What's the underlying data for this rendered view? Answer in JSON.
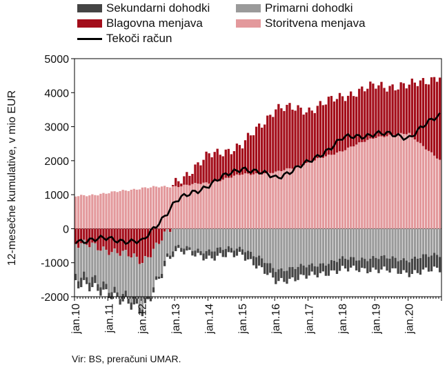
{
  "legend": {
    "items": [
      {
        "label": "Sekundarni dohodki",
        "color": "#444444",
        "kind": "box"
      },
      {
        "label": "Primarni dohodki",
        "color": "#9a9a9a",
        "kind": "box"
      },
      {
        "label": "Blagovna menjava",
        "color": "#a30d1a",
        "kind": "box"
      },
      {
        "label": "Storitvena menjava",
        "color": "#e3999c",
        "kind": "box"
      },
      {
        "label": "Tekoči račun",
        "color": "#000000",
        "kind": "line"
      }
    ]
  },
  "source": "Vir: BS, preračuni UMAR.",
  "chart_data": {
    "type": "bar",
    "stacked": true,
    "ylabel": "12-mesečne kumulative, v mio EUR",
    "ylim": [
      -2000,
      5000
    ],
    "yticks": [
      "5000",
      "4000",
      "3000",
      "2000",
      "1000",
      "0",
      "-1000",
      "-2000"
    ],
    "xticks": [
      "jan.10",
      "jan.11",
      "jan.12",
      "jan.13",
      "jan.14",
      "jan.15",
      "jan.16",
      "jan.17",
      "jan.18",
      "jan.19",
      "jan.20"
    ],
    "period": "monthly, jan.10 – dec.20",
    "series": [
      {
        "name": "Sekundarni dohodki",
        "color": "#444444",
        "knots": [
          [
            "jan.10",
            -250
          ],
          [
            "jan.11",
            -200
          ],
          [
            "jan.12",
            -150
          ],
          [
            "jan.13",
            -100
          ],
          [
            "jan.14",
            -200
          ],
          [
            "jan.15",
            -200
          ],
          [
            "jan.16",
            -350
          ],
          [
            "jan.17",
            -300
          ],
          [
            "jan.18",
            -300
          ],
          [
            "jan.19",
            -350
          ],
          [
            "jan.20",
            -400
          ],
          [
            "dec.20",
            -450
          ]
        ]
      },
      {
        "name": "Primarni dohodki",
        "color": "#9a9a9a",
        "knots": [
          [
            "jan.10",
            -900
          ],
          [
            "jan.11",
            -1100
          ],
          [
            "jan.12",
            -1350
          ],
          [
            "jan.13",
            -550
          ],
          [
            "jan.14",
            -650
          ],
          [
            "jan.15",
            -550
          ],
          [
            "jan.16",
            -1200
          ],
          [
            "jan.17",
            -1100
          ],
          [
            "jan.18",
            -900
          ],
          [
            "jan.19",
            -850
          ],
          [
            "jan.20",
            -900
          ],
          [
            "dec.20",
            -750
          ]
        ]
      },
      {
        "name": "Blagovna menjava",
        "color": "#a30d1a",
        "knots": [
          [
            "jan.10",
            -450
          ],
          [
            "jan.11",
            -600
          ],
          [
            "jan.12",
            -950
          ],
          [
            "jan.12b",
            -300
          ],
          [
            "jan.13",
            100
          ],
          [
            "jan.14",
            800
          ],
          [
            "jan.15",
            850
          ],
          [
            "jan.16",
            1900
          ],
          [
            "jan.17",
            1550
          ],
          [
            "jan.18",
            1600
          ],
          [
            "jan.19",
            1500
          ],
          [
            "jan.20",
            1400
          ],
          [
            "dec.20",
            2500
          ]
        ]
      },
      {
        "name": "Storitvena menjava",
        "color": "#e3999c",
        "knots": [
          [
            "jan.10",
            950
          ],
          [
            "jan.11",
            1050
          ],
          [
            "jan.12",
            1200
          ],
          [
            "jan.13",
            1250
          ],
          [
            "jan.14",
            1350
          ],
          [
            "jan.15",
            1600
          ],
          [
            "jan.16",
            1650
          ],
          [
            "jan.17",
            1950
          ],
          [
            "jan.18",
            2300
          ],
          [
            "jan.19",
            2700
          ],
          [
            "jan.20",
            2800
          ],
          [
            "dec.20",
            2000
          ]
        ]
      },
      {
        "name": "Tekoči račun",
        "color": "#000000",
        "line": true,
        "knots": [
          [
            "jan.10",
            -350
          ],
          [
            "jan.11",
            -300
          ],
          [
            "jan.12",
            -400
          ],
          [
            "jan.13",
            800
          ],
          [
            "jan.14",
            1300
          ],
          [
            "jan.15",
            1800
          ],
          [
            "jan.16",
            1500
          ],
          [
            "jan.17",
            1950
          ],
          [
            "jan.18",
            2650
          ],
          [
            "jan.19",
            2800
          ],
          [
            "jan.20",
            2700
          ],
          [
            "dec.20",
            3350
          ]
        ]
      }
    ]
  }
}
